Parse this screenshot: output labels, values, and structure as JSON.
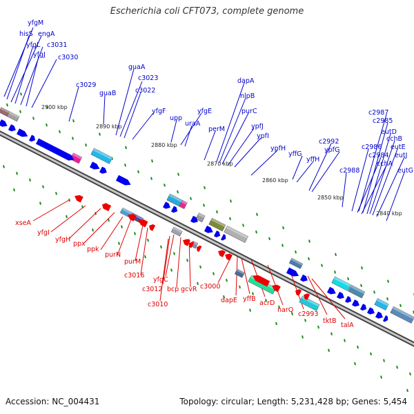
{
  "title": "Escherichia coli CFT073, complete genome",
  "footer": {
    "accession": "Accession: NC_004431",
    "summary": "Topology: circular; Length: 5,231,428 bp; Genes: 5,454"
  },
  "colors": {
    "forward_label": "#0000cc",
    "reverse_label": "#dd0000",
    "forward_gene": "#0000ee",
    "reverse_gene": "#ee0000",
    "backbone": "#666666",
    "tick_dot": "#1a8c1a"
  },
  "ticks": [
    "2900 kbp",
    "2890 kbp",
    "2880 kbp",
    "2870 kbp",
    "2860 kbp",
    "2850 kbp",
    "2840 kbp"
  ],
  "forward_genes": [
    "yfgM",
    "hisS",
    "engA",
    "yfgL",
    "c3031",
    "yfgJ",
    "c3030",
    "c3029",
    "guaA",
    "c3023",
    "guaB",
    "c3022",
    "yfgF",
    "upp",
    "yfgE",
    "uraA",
    "dapA",
    "nlpB",
    "purC",
    "perM",
    "ypfJ",
    "ypfI",
    "ypfH",
    "yffG",
    "yffH",
    "c2992",
    "ypfG",
    "c2987",
    "c2985",
    "eutD",
    "cchB",
    "eutE",
    "c2986",
    "c2984",
    "eutJ",
    "cchA",
    "eutG",
    "c2988"
  ],
  "reverse_genes": [
    "xseA",
    "yfgI",
    "yfgH",
    "ppx",
    "ppk",
    "purN",
    "purM",
    "c3016",
    "yfgC",
    "c3012",
    "bcp",
    "gcvR",
    "c3010",
    "c3000",
    "dapE",
    "yffB",
    "acrD",
    "narQ",
    "c2993",
    "tktB",
    "talA"
  ]
}
